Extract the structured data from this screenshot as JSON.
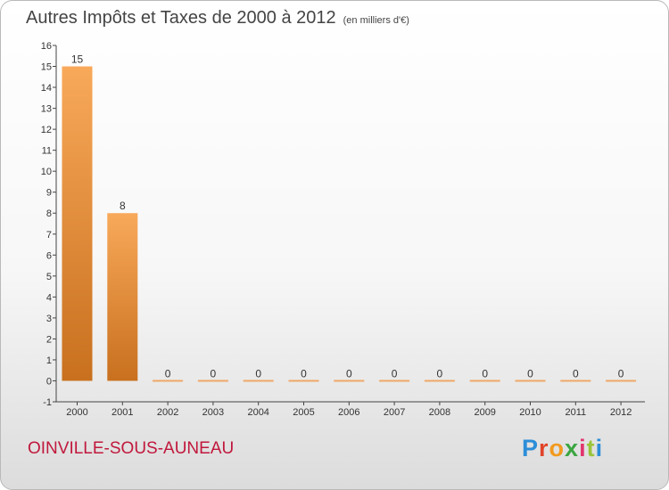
{
  "title": "Autres Impôts et Taxes de 2000 à 2012",
  "subtitle": "(en milliers d'€)",
  "commune": "OINVILLE-SOUS-AUNEAU",
  "logo": {
    "chars": [
      "P",
      "r",
      "o",
      "x",
      "i",
      "t",
      "i"
    ]
  },
  "colors": {
    "bar_top": "#f8a95a",
    "bar_bottom": "#c8701e",
    "title": "#444444",
    "commune": "#c0183c"
  },
  "chart_data": {
    "type": "bar",
    "title": "Autres Impôts et Taxes de 2000 à 2012",
    "subtitle": "(en milliers d'€)",
    "categories": [
      "2000",
      "2001",
      "2002",
      "2003",
      "2004",
      "2005",
      "2006",
      "2007",
      "2008",
      "2009",
      "2010",
      "2011",
      "2012"
    ],
    "values": [
      15,
      8,
      0,
      0,
      0,
      0,
      0,
      0,
      0,
      0,
      0,
      0,
      0
    ],
    "data_labels": [
      "15",
      "8",
      "0",
      "0",
      "0",
      "0",
      "0",
      "0",
      "0",
      "0",
      "0",
      "0",
      "0"
    ],
    "ylim": [
      -1,
      16
    ],
    "yticks": [
      "-1",
      "0",
      "1",
      "2",
      "3",
      "4",
      "5",
      "6",
      "7",
      "8",
      "9",
      "10",
      "11",
      "12",
      "13",
      "14",
      "15",
      "16"
    ],
    "xlabel": "",
    "ylabel": "",
    "grid": false
  }
}
